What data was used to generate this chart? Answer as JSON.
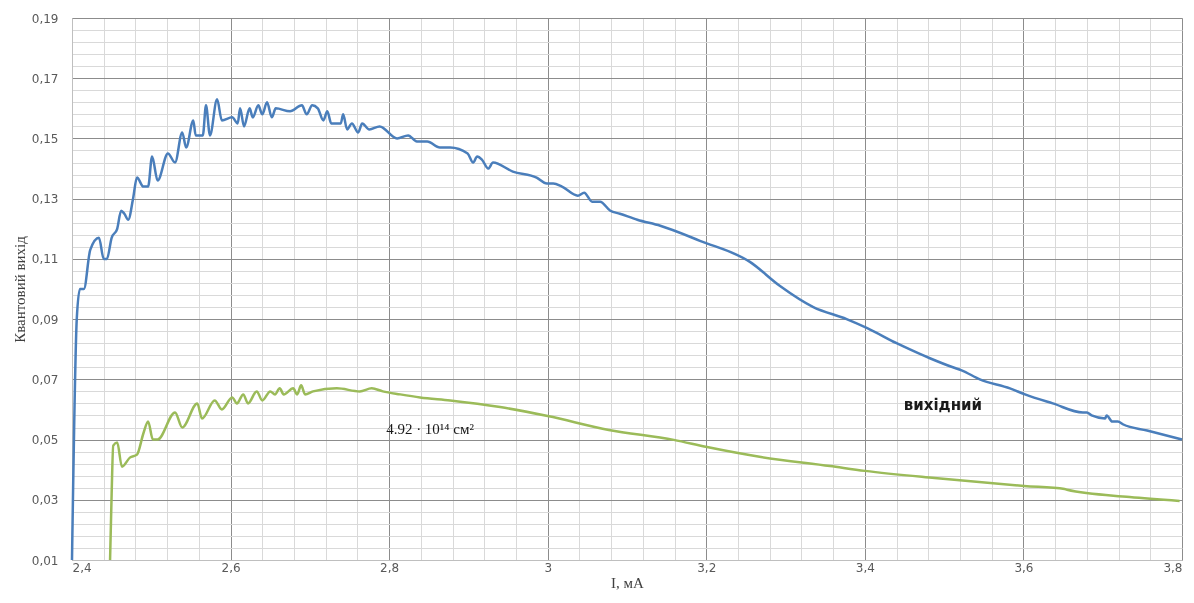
{
  "chart_data": {
    "type": "line",
    "xlabel": "I, мА",
    "ylabel": "Квантовий вихід",
    "xlim": [
      2.4,
      3.8
    ],
    "ylim": [
      0.01,
      0.19
    ],
    "grid": true,
    "marker": "none",
    "line_style": "solid",
    "xticks": [
      {
        "value": 2.4,
        "label": "2,4"
      },
      {
        "value": 2.44,
        "label": null
      },
      {
        "value": 2.48,
        "label": null
      },
      {
        "value": 2.52,
        "label": null
      },
      {
        "value": 2.56,
        "label": null
      },
      {
        "value": 2.6,
        "label": "2,6"
      },
      {
        "value": 2.64,
        "label": null
      },
      {
        "value": 2.68,
        "label": null
      },
      {
        "value": 2.72,
        "label": null
      },
      {
        "value": 2.76,
        "label": null
      },
      {
        "value": 2.8,
        "label": "2,8"
      },
      {
        "value": 2.84,
        "label": null
      },
      {
        "value": 2.88,
        "label": null
      },
      {
        "value": 2.92,
        "label": null
      },
      {
        "value": 2.96,
        "label": null
      },
      3,
      {
        "value": 3.04,
        "label": null
      },
      {
        "value": 3.08,
        "label": null
      },
      {
        "value": 3.12,
        "label": null
      },
      {
        "value": 3.16,
        "label": null
      },
      {
        "value": 3.2,
        "label": "3,2"
      },
      {
        "value": 3.24,
        "label": null
      },
      {
        "value": 3.28,
        "label": null
      },
      {
        "value": 3.32,
        "label": null
      },
      {
        "value": 3.36,
        "label": null
      },
      {
        "value": 3.4,
        "label": "3,4"
      },
      {
        "value": 3.44,
        "label": null
      },
      {
        "value": 3.48,
        "label": null
      },
      {
        "value": 3.52,
        "label": null
      },
      {
        "value": 3.56,
        "label": null
      },
      {
        "value": 3.6,
        "label": "3,6"
      },
      {
        "value": 3.64,
        "label": null
      },
      {
        "value": 3.68,
        "label": null
      },
      {
        "value": 3.72,
        "label": null
      },
      {
        "value": 3.76,
        "label": null
      },
      {
        "value": 3.8,
        "label": "3,8"
      }
    ],
    "yticks": [
      {
        "value": 0.01,
        "label": "0,01"
      },
      {
        "value": 0.014,
        "label": null
      },
      {
        "value": 0.018,
        "label": null
      },
      {
        "value": 0.022,
        "label": null
      },
      {
        "value": 0.026,
        "label": null
      },
      {
        "value": 0.03,
        "label": "0,03"
      },
      {
        "value": 0.034,
        "label": null
      },
      {
        "value": 0.038,
        "label": null
      },
      {
        "value": 0.042,
        "label": null
      },
      {
        "value": 0.046,
        "label": null
      },
      {
        "value": 0.05,
        "label": "0,05"
      },
      {
        "value": 0.054,
        "label": null
      },
      {
        "value": 0.058,
        "label": null
      },
      {
        "value": 0.062,
        "label": null
      },
      {
        "value": 0.066,
        "label": null
      },
      {
        "value": 0.07,
        "label": "0,07"
      },
      {
        "value": 0.074,
        "label": null
      },
      {
        "value": 0.078,
        "label": null
      },
      {
        "value": 0.082,
        "label": null
      },
      {
        "value": 0.086,
        "label": null
      },
      {
        "value": 0.09,
        "label": "0,09"
      },
      {
        "value": 0.094,
        "label": null
      },
      {
        "value": 0.098,
        "label": null
      },
      {
        "value": 0.102,
        "label": null
      },
      {
        "value": 0.106,
        "label": null
      },
      {
        "value": 0.11,
        "label": "0,11"
      },
      {
        "value": 0.114,
        "label": null
      },
      {
        "value": 0.118,
        "label": null
      },
      {
        "value": 0.122,
        "label": null
      },
      {
        "value": 0.126,
        "label": null
      },
      {
        "value": 0.13,
        "label": "0,13"
      },
      {
        "value": 0.134,
        "label": null
      },
      {
        "value": 0.138,
        "label": null
      },
      {
        "value": 0.142,
        "label": null
      },
      {
        "value": 0.146,
        "label": null
      },
      {
        "value": 0.15,
        "label": "0,15"
      },
      {
        "value": 0.154,
        "label": null
      },
      {
        "value": 0.158,
        "label": null
      },
      {
        "value": 0.162,
        "label": null
      },
      {
        "value": 0.166,
        "label": null
      },
      {
        "value": 0.17,
        "label": "0,17"
      },
      {
        "value": 0.174,
        "label": null
      },
      {
        "value": 0.178,
        "label": null
      },
      {
        "value": 0.182,
        "label": null
      },
      {
        "value": 0.186,
        "label": null
      },
      {
        "value": 0.19,
        "label": "0,19"
      }
    ],
    "series": [
      {
        "name": "вихідний",
        "color": "#4a7ebb",
        "x": [
          2.4,
          2.406,
          2.41,
          2.415,
          2.423,
          2.434,
          2.44,
          2.444,
          2.45,
          2.457,
          2.462,
          2.466,
          2.471,
          2.477,
          2.482,
          2.49,
          2.496,
          2.501,
          2.508,
          2.521,
          2.53,
          2.539,
          2.544,
          2.553,
          2.556,
          2.565,
          2.569,
          2.574,
          2.583,
          2.589,
          2.602,
          2.609,
          2.612,
          2.617,
          2.624,
          2.628,
          2.635,
          2.64,
          2.646,
          2.652,
          2.657,
          2.675,
          2.69,
          2.696,
          2.703,
          2.71,
          2.717,
          2.722,
          2.727,
          2.739,
          2.742,
          2.747,
          2.753,
          2.761,
          2.766,
          2.775,
          2.788,
          2.81,
          2.824,
          2.835,
          2.848,
          2.864,
          2.877,
          2.899,
          2.906,
          2.911,
          2.917,
          2.925,
          2.931,
          2.956,
          2.986,
          2.999,
          3.007,
          3.018,
          3.038,
          3.046,
          3.056,
          3.066,
          3.079,
          3.091,
          3.113,
          3.142,
          3.192,
          3.255,
          3.293,
          3.335,
          3.377,
          3.403,
          3.44,
          3.448,
          3.482,
          3.511,
          3.522,
          3.545,
          3.583,
          3.602,
          3.637,
          3.675,
          3.68,
          3.686,
          3.703,
          3.705,
          3.712,
          3.719,
          3.726,
          3.756,
          3.8
        ],
        "values": [
          0.01,
          0.09,
          0.1,
          0.1,
          0.113,
          0.117,
          0.11,
          0.11,
          0.117,
          0.12,
          0.126,
          0.125,
          0.123,
          0.13,
          0.137,
          0.134,
          0.134,
          0.144,
          0.136,
          0.145,
          0.142,
          0.152,
          0.147,
          0.156,
          0.151,
          0.151,
          0.161,
          0.151,
          0.163,
          0.156,
          0.157,
          0.155,
          0.16,
          0.154,
          0.16,
          0.157,
          0.161,
          0.158,
          0.162,
          0.157,
          0.16,
          0.159,
          0.161,
          0.158,
          0.161,
          0.16,
          0.156,
          0.159,
          0.155,
          0.155,
          0.158,
          0.153,
          0.155,
          0.152,
          0.155,
          0.153,
          0.154,
          0.15,
          0.151,
          0.149,
          0.149,
          0.147,
          0.147,
          0.145,
          0.142,
          0.144,
          0.143,
          0.14,
          0.142,
          0.139,
          0.137,
          0.135,
          0.135,
          0.134,
          0.131,
          0.132,
          0.129,
          0.129,
          0.126,
          0.125,
          0.123,
          0.121,
          0.116,
          0.109,
          0.101,
          0.094,
          0.09,
          0.087,
          0.082,
          0.081,
          0.077,
          0.074,
          0.073,
          0.07,
          0.067,
          0.065,
          0.062,
          0.059,
          0.059,
          0.058,
          0.057,
          0.058,
          0.056,
          0.056,
          0.055,
          0.053,
          0.05
        ]
      },
      {
        "name": "4.92 · 10¹⁴ см²",
        "color": "#9bbb59",
        "x": [
          2.448,
          2.45,
          2.452,
          2.457,
          2.463,
          2.473,
          2.482,
          2.49,
          2.496,
          2.502,
          2.508,
          2.53,
          2.539,
          2.558,
          2.564,
          2.58,
          2.589,
          2.602,
          2.608,
          2.616,
          2.622,
          2.633,
          2.64,
          2.65,
          2.656,
          2.662,
          2.667,
          2.679,
          2.684,
          2.689,
          2.694,
          2.704,
          2.734,
          2.763,
          2.778,
          2.792,
          2.814,
          2.839,
          2.877,
          2.94,
          3.0,
          3.077,
          3.159,
          3.201,
          3.269,
          3.356,
          3.4,
          3.488,
          3.601,
          3.652,
          3.655,
          3.734,
          3.797
        ],
        "values": [
          0.01,
          0.032,
          0.048,
          0.049,
          0.041,
          0.044,
          0.045,
          0.052,
          0.056,
          0.05,
          0.05,
          0.059,
          0.054,
          0.062,
          0.057,
          0.063,
          0.06,
          0.064,
          0.062,
          0.065,
          0.062,
          0.066,
          0.063,
          0.066,
          0.065,
          0.067,
          0.065,
          0.067,
          0.065,
          0.068,
          0.065,
          0.066,
          0.067,
          0.066,
          0.067,
          0.066,
          0.065,
          0.064,
          0.063,
          0.0608,
          0.0578,
          0.0532,
          0.0499,
          0.0475,
          0.0442,
          0.0412,
          0.0396,
          0.0372,
          0.0346,
          0.0336,
          0.0333,
          0.0309,
          0.0296
        ]
      }
    ]
  }
}
